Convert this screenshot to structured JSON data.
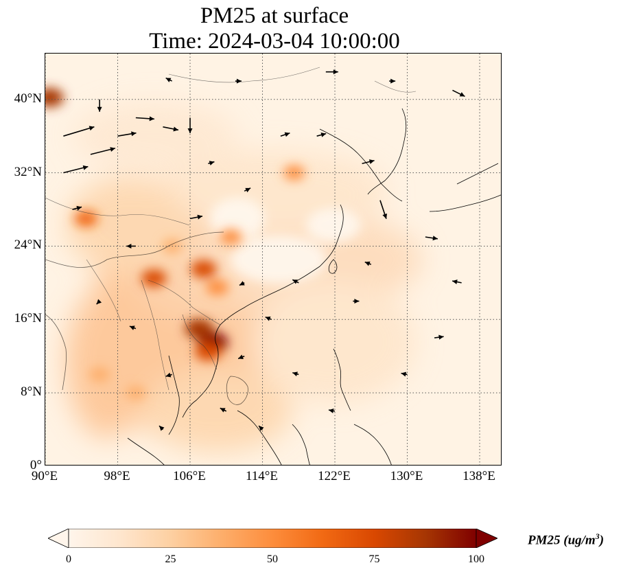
{
  "title": {
    "line1": "PM25 at surface",
    "line2": "Time: 2024-03-04 10:00:00"
  },
  "map": {
    "lon_range": [
      90,
      140.5
    ],
    "lat_range": [
      0,
      45
    ],
    "lat_ticks": [
      {
        "value": 0,
        "label": "0°"
      },
      {
        "value": 8,
        "label": "8°N"
      },
      {
        "value": 16,
        "label": "16°N"
      },
      {
        "value": 24,
        "label": "24°N"
      },
      {
        "value": 32,
        "label": "32°N"
      },
      {
        "value": 40,
        "label": "40°N"
      }
    ],
    "lon_ticks": [
      {
        "value": 90,
        "label": "90°E"
      },
      {
        "value": 98,
        "label": "98°E"
      },
      {
        "value": 106,
        "label": "106°E"
      },
      {
        "value": 114,
        "label": "114°E"
      },
      {
        "value": 122,
        "label": "122°E"
      },
      {
        "value": 130,
        "label": "130°E"
      },
      {
        "value": 138,
        "label": "138°E"
      }
    ],
    "gridlines": "dotted",
    "background_color": "#fff3e4"
  },
  "colorbar": {
    "label": "PM25 (ug/m",
    "label_sup": "3",
    "label_close": ")",
    "ticks": [
      "0",
      "25",
      "50",
      "75",
      "100"
    ],
    "range": [
      0,
      100
    ],
    "colormap": [
      "#fff5eb",
      "#fee6ce",
      "#fdd0a2",
      "#fdae6b",
      "#fd8d3c",
      "#f16913",
      "#d94801",
      "#a63603",
      "#7f0000"
    ]
  },
  "pollution_hotspots": [
    {
      "lon": 90.5,
      "lat": 40.2,
      "value": 85
    },
    {
      "lon": 108.5,
      "lat": 13.5,
      "value": 100
    },
    {
      "lon": 107.5,
      "lat": 21.5,
      "value": 75
    },
    {
      "lon": 109.0,
      "lat": 19.5,
      "value": 55
    },
    {
      "lon": 102.0,
      "lat": 20.5,
      "value": 70
    },
    {
      "lon": 107.0,
      "lat": 15.0,
      "value": 90
    },
    {
      "lon": 94.5,
      "lat": 27.0,
      "value": 60
    },
    {
      "lon": 110.5,
      "lat": 25.0,
      "value": 50
    },
    {
      "lon": 117.5,
      "lat": 32.0,
      "value": 45
    },
    {
      "lon": 104.0,
      "lat": 24.0,
      "value": 35
    },
    {
      "lon": 96.0,
      "lat": 10.0,
      "value": 40
    },
    {
      "lon": 100.0,
      "lat": 8.0,
      "value": 35
    },
    {
      "lon": 108.0,
      "lat": 12.5,
      "value": 80
    }
  ],
  "wind_vectors": [
    {
      "lon": 92,
      "lat": 36,
      "u": 5,
      "v": 1.5
    },
    {
      "lon": 92,
      "lat": 32,
      "u": 4,
      "v": 1.0
    },
    {
      "lon": 95,
      "lat": 34,
      "u": 4,
      "v": 1.0
    },
    {
      "lon": 98,
      "lat": 36,
      "u": 3,
      "v": 0.5
    },
    {
      "lon": 100,
      "lat": 38,
      "u": 3,
      "v": -0.2
    },
    {
      "lon": 103,
      "lat": 37,
      "u": 2.5,
      "v": -0.5
    },
    {
      "lon": 104,
      "lat": 42,
      "u": -1,
      "v": 0.5
    },
    {
      "lon": 111,
      "lat": 42,
      "u": 1,
      "v": 0
    },
    {
      "lon": 121,
      "lat": 43,
      "u": 2,
      "v": 0
    },
    {
      "lon": 135,
      "lat": 41,
      "u": 2,
      "v": -1
    },
    {
      "lon": 128,
      "lat": 42,
      "u": 1,
      "v": 0
    },
    {
      "lon": 125,
      "lat": 33,
      "u": 2,
      "v": 0.5
    },
    {
      "lon": 127,
      "lat": 29,
      "u": 1,
      "v": -3
    },
    {
      "lon": 132,
      "lat": 25,
      "u": 2,
      "v": -0.3
    },
    {
      "lon": 136,
      "lat": 20,
      "u": -1.5,
      "v": 0.3
    },
    {
      "lon": 133,
      "lat": 14,
      "u": 1.5,
      "v": 0.2
    },
    {
      "lon": 130,
      "lat": 10,
      "u": -1,
      "v": 0.2
    },
    {
      "lon": 124,
      "lat": 18,
      "u": 1,
      "v": 0
    },
    {
      "lon": 118,
      "lat": 20,
      "u": -1,
      "v": 0.5
    },
    {
      "lon": 115,
      "lat": 16,
      "u": -1,
      "v": 0.4
    },
    {
      "lon": 112,
      "lat": 12,
      "u": -1,
      "v": -0.4
    },
    {
      "lon": 118,
      "lat": 10,
      "u": -1,
      "v": 0.3
    },
    {
      "lon": 122,
      "lat": 6,
      "u": -1,
      "v": 0.2
    },
    {
      "lon": 110,
      "lat": 6,
      "u": -1,
      "v": 0.5
    },
    {
      "lon": 104,
      "lat": 10,
      "u": -1,
      "v": -0.3
    },
    {
      "lon": 100,
      "lat": 15,
      "u": -1,
      "v": 0.4
    },
    {
      "lon": 96,
      "lat": 18,
      "u": -0.5,
      "v": -0.5
    },
    {
      "lon": 100,
      "lat": 24,
      "u": -1.5,
      "v": 0
    },
    {
      "lon": 106,
      "lat": 27,
      "u": 2,
      "v": 0.4
    },
    {
      "lon": 112,
      "lat": 30,
      "u": 1,
      "v": 0.5
    },
    {
      "lon": 116,
      "lat": 36,
      "u": 1.5,
      "v": 0.5
    },
    {
      "lon": 120,
      "lat": 36,
      "u": 1.5,
      "v": 0.4
    },
    {
      "lon": 106,
      "lat": 38,
      "u": 0,
      "v": -2.5
    },
    {
      "lon": 96,
      "lat": 40,
      "u": 0,
      "v": -2
    },
    {
      "lon": 93,
      "lat": 28,
      "u": 1.5,
      "v": 0.4
    },
    {
      "lon": 112,
      "lat": 20,
      "u": -0.8,
      "v": -0.4
    },
    {
      "lon": 126,
      "lat": 22,
      "u": -1,
      "v": 0.4
    },
    {
      "lon": 108,
      "lat": 33,
      "u": 1,
      "v": 0.3
    },
    {
      "lon": 114,
      "lat": 4,
      "u": -0.6,
      "v": 0.6
    },
    {
      "lon": 103,
      "lat": 4,
      "u": -0.6,
      "v": 0.6
    }
  ]
}
